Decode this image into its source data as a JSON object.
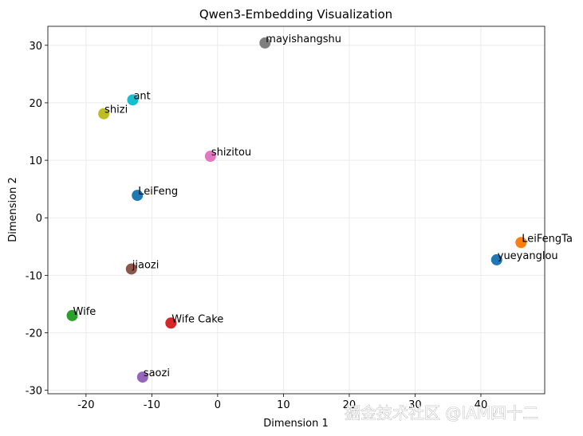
{
  "chart_data": {
    "type": "scatter",
    "title": "Qwen3-Embedding Visualization",
    "xlabel": "Dimension 1",
    "ylabel": "Dimension 2",
    "labels": [
      "LeiFeng",
      "LeiFengTa",
      "Wife",
      "Wife Cake",
      "saozi",
      "jiaozi",
      "shizitou",
      "mayishangshu",
      "shizi",
      "ant",
      "yueyanglou"
    ],
    "x": [
      -12.2,
      46.1,
      -22.1,
      -7.1,
      -11.4,
      -13.1,
      -1.1,
      7.2,
      -17.3,
      -12.9,
      42.4
    ],
    "values": [
      3.9,
      -4.3,
      -17.0,
      -18.3,
      -27.7,
      -8.9,
      10.7,
      30.4,
      18.1,
      20.5,
      -7.3
    ],
    "colors": [
      "#1f77b4",
      "#ff7f0e",
      "#2ca02c",
      "#d62728",
      "#9467bd",
      "#8c564b",
      "#e377c2",
      "#7f7f7f",
      "#bcbd22",
      "#17becf",
      "#1f77b4"
    ],
    "xlim": [
      -25.8,
      49.7
    ],
    "ylim": [
      -30.6,
      33.3
    ],
    "xticks": [
      -20,
      -10,
      0,
      10,
      20,
      30,
      40
    ],
    "yticks": [
      -30,
      -20,
      -10,
      0,
      10,
      20,
      30
    ],
    "grid": true
  },
  "watermark": "掘金技术社区 @IAM四十二"
}
